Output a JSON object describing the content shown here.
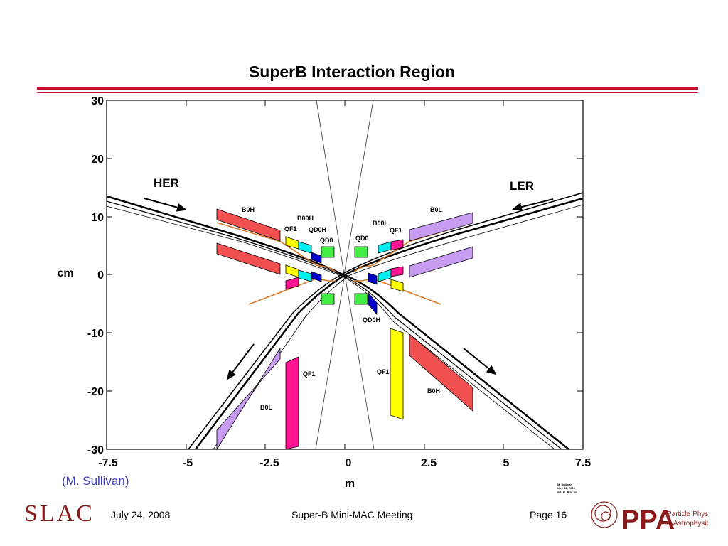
{
  "title": "SuperB Interaction Region",
  "axes": {
    "x_label": "m",
    "y_label": "cm",
    "x_ticks": [
      "-7.5",
      "-5",
      "-2.5",
      "0",
      "2.5",
      "5",
      "7.5"
    ],
    "y_ticks": [
      "30",
      "20",
      "10",
      "0",
      "-10",
      "-20",
      "-30"
    ],
    "x_range": [
      -7.5,
      7.5
    ],
    "y_range": [
      -30,
      30
    ]
  },
  "beams": {
    "her": "HER",
    "ler": "LER"
  },
  "magnets": {
    "b0h_upper": "B0H",
    "b00h": "B00H",
    "qf1_ul": "QF1",
    "qd0h_upper": "QD0H",
    "qd0_l": "QD0",
    "qd0_r": "QD0",
    "b00l": "B00L",
    "qf1_ur": "QF1",
    "b0l_upper": "B0L",
    "qd0h_lower": "QD0H",
    "qf1_ll": "QF1",
    "qf1_lr": "QF1",
    "b0l_lower": "B0L",
    "b0h_lower": "B0H"
  },
  "colors": {
    "b0h": "#f05050",
    "b0l": "#c89cf0",
    "qf1_yellow": "#ffff00",
    "qf1_magenta": "#ff1493",
    "qd0": "#44ee44",
    "qd0h": "#0000cc",
    "b00": "#00eeee",
    "chamber": "#d87a2a",
    "rule": "#c8102e"
  },
  "credit": {
    "line1": "M. Sullivan",
    "line2": "Nov. 11, 2006",
    "line3": "SB_IT_B.C_G3"
  },
  "author": "(M. Sullivan)",
  "footer": {
    "date": "July 24, 2008",
    "meeting": "Super-B Mini-MAC Meeting",
    "page": "Page 16"
  },
  "logos": {
    "slac": "SLAC",
    "ppa": "PPA",
    "ppa_line1": "Particle Physics",
    "ppa_line2": "& Astrophysics"
  }
}
